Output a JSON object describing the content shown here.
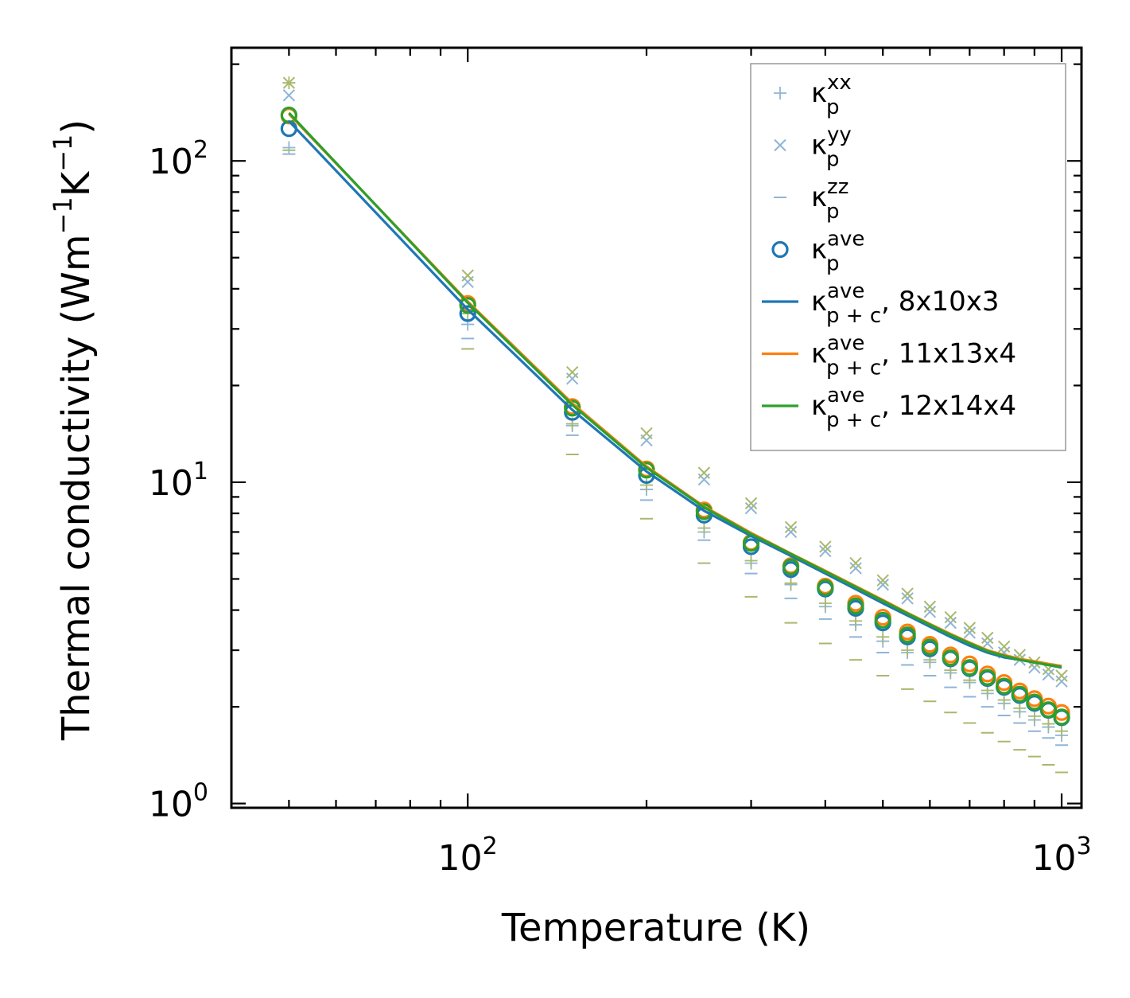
{
  "chart_data": {
    "type": "scatter",
    "xscale": "log",
    "yscale": "log",
    "xlabel": "Temperature (K)",
    "ylabel": {
      "main": "Thermal conductivity (Wm",
      "exp1": "−1",
      "mid": "K",
      "exp2": "−1",
      "end": ")"
    },
    "xlim": [
      40,
      1080
    ],
    "ylim": [
      0.97,
      225
    ],
    "x_ticks": [
      {
        "value": 100,
        "base": "10",
        "exp": "2"
      },
      {
        "value": 1000,
        "base": "10",
        "exp": "3"
      }
    ],
    "y_ticks": [
      {
        "value": 1,
        "base": "10",
        "exp": "0"
      },
      {
        "value": 10,
        "base": "10",
        "exp": "1"
      },
      {
        "value": 100,
        "base": "10",
        "exp": "2"
      }
    ],
    "x": [
      50,
      100,
      150,
      200,
      250,
      300,
      350,
      400,
      450,
      500,
      550,
      600,
      650,
      700,
      750,
      800,
      850,
      900,
      950,
      1000
    ],
    "series": [
      {
        "name": "kappa_p_xx",
        "kind": "plus",
        "color": "#8fb5d6",
        "values": [
          110,
          31,
          15,
          9.5,
          7.0,
          5.6,
          4.8,
          4.1,
          3.6,
          3.2,
          2.95,
          2.75,
          2.55,
          2.38,
          2.2,
          2.05,
          1.93,
          1.82,
          1.73,
          1.63
        ]
      },
      {
        "name": "kappa_p_xx_alt",
        "kind": "plus",
        "color": "#a8b96d",
        "values": [
          175,
          33.5,
          15.2,
          9.8,
          7.2,
          5.7,
          4.85,
          4.2,
          3.7,
          3.3,
          3.0,
          2.8,
          2.6,
          2.42,
          2.25,
          2.1,
          1.98,
          1.87,
          1.77,
          1.68
        ]
      },
      {
        "name": "kappa_p_yy",
        "kind": "x",
        "color": "#8fb5d6",
        "values": [
          160,
          42,
          21,
          13.5,
          10.2,
          8.3,
          7.0,
          6.1,
          5.4,
          4.8,
          4.35,
          3.95,
          3.65,
          3.4,
          3.15,
          2.95,
          2.8,
          2.65,
          2.52,
          2.4
        ]
      },
      {
        "name": "kappa_p_yy_alt",
        "kind": "x",
        "color": "#a8b96d",
        "values": [
          175,
          44,
          22,
          14.2,
          10.7,
          8.6,
          7.25,
          6.3,
          5.6,
          4.95,
          4.5,
          4.1,
          3.8,
          3.52,
          3.28,
          3.08,
          2.9,
          2.75,
          2.62,
          2.5
        ]
      },
      {
        "name": "kappa_p_zz",
        "kind": "minus",
        "color": "#8fb5d6",
        "values": [
          105,
          28,
          14,
          8.8,
          6.6,
          5.2,
          4.35,
          3.75,
          3.3,
          2.95,
          2.7,
          2.5,
          2.3,
          2.15,
          2.0,
          1.88,
          1.78,
          1.68,
          1.6,
          1.52
        ]
      },
      {
        "name": "kappa_p_zz_alt",
        "kind": "minus",
        "color": "#a8b96d",
        "values": [
          108,
          26,
          12.2,
          7.7,
          5.6,
          4.4,
          3.65,
          3.15,
          2.8,
          2.5,
          2.27,
          2.08,
          1.92,
          1.78,
          1.66,
          1.56,
          1.47,
          1.4,
          1.32,
          1.25
        ]
      },
      {
        "name": "kappa_p_ave_orange",
        "kind": "circle",
        "color": "#ff7f0e",
        "values": [
          138,
          36,
          17.2,
          11.0,
          8.2,
          6.5,
          5.5,
          4.75,
          4.2,
          3.8,
          3.42,
          3.13,
          2.9,
          2.72,
          2.53,
          2.38,
          2.24,
          2.12,
          2.01,
          1.92
        ]
      },
      {
        "name": "kappa_p_ave_blue",
        "kind": "circle",
        "color": "#1f77b4",
        "values": [
          126,
          33.5,
          16.5,
          10.5,
          7.9,
          6.3,
          5.35,
          4.65,
          4.05,
          3.65,
          3.3,
          3.03,
          2.82,
          2.63,
          2.45,
          2.3,
          2.17,
          2.05,
          1.95,
          1.85
        ]
      },
      {
        "name": "kappa_p_ave_green",
        "kind": "circle",
        "color": "#2ca02c",
        "values": [
          139,
          35.5,
          17.0,
          10.9,
          8.1,
          6.45,
          5.45,
          4.7,
          4.12,
          3.72,
          3.35,
          3.07,
          2.84,
          2.65,
          2.47,
          2.32,
          2.19,
          2.07,
          1.96,
          1.86
        ]
      },
      {
        "name": "kappa_pc_ave_8x10x3",
        "kind": "line",
        "color": "#1f77b4",
        "values": [
          133,
          34.5,
          16.8,
          10.8,
          8.15,
          6.8,
          5.9,
          5.2,
          4.65,
          4.2,
          3.85,
          3.55,
          3.3,
          3.1,
          2.95,
          2.85,
          2.8,
          2.75,
          2.7,
          2.65
        ]
      },
      {
        "name": "kappa_pc_ave_11x13x4",
        "kind": "line",
        "color": "#ff7f0e",
        "values": [
          140,
          36.5,
          17.6,
          11.2,
          8.4,
          6.95,
          6.0,
          5.3,
          4.75,
          4.3,
          3.92,
          3.62,
          3.37,
          3.17,
          3.0,
          2.9,
          2.82,
          2.77,
          2.72,
          2.68
        ]
      },
      {
        "name": "kappa_pc_ave_12x14x4",
        "kind": "line",
        "color": "#2ca02c",
        "values": [
          141,
          36.2,
          17.4,
          11.1,
          8.35,
          6.9,
          5.98,
          5.27,
          4.72,
          4.27,
          3.9,
          3.6,
          3.35,
          3.15,
          2.98,
          2.88,
          2.8,
          2.75,
          2.7,
          2.66
        ]
      }
    ],
    "legend": {
      "position": "top-right",
      "entries": [
        {
          "kind": "plus",
          "color": "#8fb5d6",
          "sym": "κ",
          "sub": "p",
          "sup": "xx",
          "suffix": ""
        },
        {
          "kind": "x",
          "color": "#8fb5d6",
          "sym": "κ",
          "sub": "p",
          "sup": "yy",
          "suffix": ""
        },
        {
          "kind": "minus",
          "color": "#8fb5d6",
          "sym": "κ",
          "sub": "p",
          "sup": "zz",
          "suffix": ""
        },
        {
          "kind": "circle",
          "color": "#1f77b4",
          "sym": "κ",
          "sub": "p",
          "sup": "ave",
          "suffix": ""
        },
        {
          "kind": "line",
          "color": "#1f77b4",
          "sym": "κ",
          "sub": "p + c",
          "sup": "ave",
          "suffix": ", 8x10x3"
        },
        {
          "kind": "line",
          "color": "#ff7f0e",
          "sym": "κ",
          "sub": "p + c",
          "sup": "ave",
          "suffix": ", 11x13x4"
        },
        {
          "kind": "line",
          "color": "#2ca02c",
          "sym": "κ",
          "sub": "p + c",
          "sup": "ave",
          "suffix": ", 12x14x4"
        }
      ]
    }
  }
}
